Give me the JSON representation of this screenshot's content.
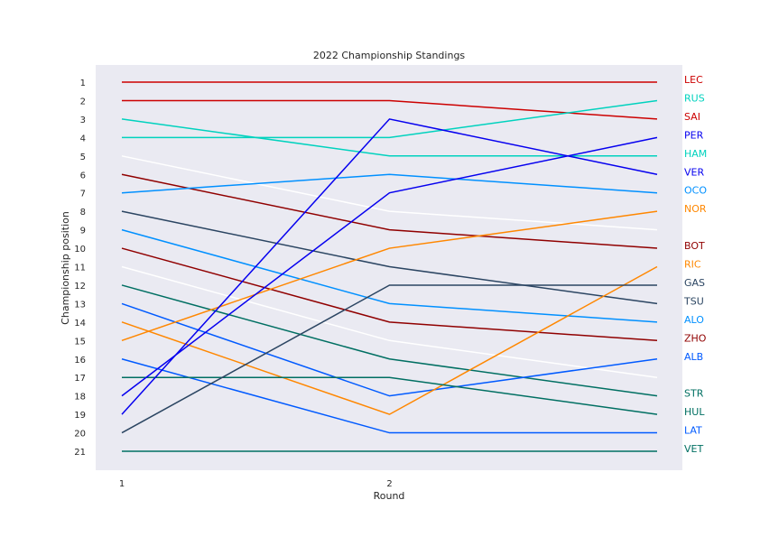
{
  "chart_data": {
    "type": "line",
    "title": "2022 Championship Standings",
    "xlabel": "Round",
    "ylabel": "Championship position",
    "x_ticks": [
      1,
      2
    ],
    "y_ticks": [
      1,
      2,
      3,
      4,
      5,
      6,
      7,
      8,
      9,
      10,
      11,
      12,
      13,
      14,
      15,
      16,
      17,
      18,
      19,
      20,
      21
    ],
    "y_inverted": true,
    "ylim": [
      1,
      21
    ],
    "grid": false,
    "background": "#eaeaf2",
    "series": [
      {
        "color": "#cc0000",
        "x": [
          1,
          2,
          3
        ],
        "y": [
          1,
          1,
          1
        ]
      },
      {
        "color": "#cc0000",
        "x": [
          1,
          2,
          3
        ],
        "y": [
          2,
          2,
          3
        ]
      },
      {
        "color": "#00d2be",
        "x": [
          1,
          2,
          3
        ],
        "y": [
          3,
          5,
          5
        ]
      },
      {
        "color": "#00d2be",
        "x": [
          1,
          2,
          3
        ],
        "y": [
          4,
          4,
          2
        ]
      },
      {
        "color": "#ffffff",
        "x": [
          1,
          2,
          3
        ],
        "y": [
          5,
          8,
          9
        ]
      },
      {
        "color": "#900000",
        "x": [
          1,
          2,
          3
        ],
        "y": [
          6,
          9,
          10
        ]
      },
      {
        "color": "#0090ff",
        "x": [
          1,
          2,
          3
        ],
        "y": [
          7,
          6,
          7
        ]
      },
      {
        "color": "#2b4562",
        "x": [
          1,
          2,
          3
        ],
        "y": [
          8,
          11,
          13
        ]
      },
      {
        "color": "#0090ff",
        "x": [
          1,
          2,
          3
        ],
        "y": [
          9,
          13,
          14
        ]
      },
      {
        "color": "#900000",
        "x": [
          1,
          2,
          3
        ],
        "y": [
          10,
          14,
          15
        ]
      },
      {
        "color": "#ffffff",
        "x": [
          1,
          2,
          3
        ],
        "y": [
          11,
          15,
          17
        ]
      },
      {
        "color": "#006f62",
        "x": [
          1,
          2,
          3
        ],
        "y": [
          12,
          16,
          18
        ]
      },
      {
        "color": "#005aff",
        "x": [
          1,
          2,
          3
        ],
        "y": [
          13,
          18,
          16
        ]
      },
      {
        "color": "#ff8700",
        "x": [
          1,
          2,
          3
        ],
        "y": [
          14,
          19,
          11
        ]
      },
      {
        "color": "#ff8700",
        "x": [
          1,
          2,
          3
        ],
        "y": [
          15,
          10,
          8
        ]
      },
      {
        "color": "#005aff",
        "x": [
          1,
          2,
          3
        ],
        "y": [
          16,
          20,
          20
        ]
      },
      {
        "color": "#006f62",
        "x": [
          1,
          2,
          3
        ],
        "y": [
          17,
          17,
          19
        ]
      },
      {
        "color": "#0600ef",
        "x": [
          1,
          2,
          3
        ],
        "y": [
          18,
          7,
          4
        ]
      },
      {
        "color": "#0600ef",
        "x": [
          1,
          2,
          3
        ],
        "y": [
          19,
          3,
          6
        ]
      },
      {
        "color": "#2b4562",
        "x": [
          1,
          2,
          3
        ],
        "y": [
          20,
          12,
          12
        ]
      },
      {
        "color": "#006f62",
        "x": [
          1,
          2,
          3
        ],
        "y": [
          21,
          21,
          21
        ]
      }
    ],
    "end_labels": [
      {
        "text": "LEC",
        "position": 1,
        "color": "#cc0000"
      },
      {
        "text": "RUS",
        "position": 2,
        "color": "#00d2be"
      },
      {
        "text": "SAI",
        "position": 3,
        "color": "#cc0000"
      },
      {
        "text": "PER",
        "position": 4,
        "color": "#0600ef"
      },
      {
        "text": "HAM",
        "position": 5,
        "color": "#00d2be"
      },
      {
        "text": "VER",
        "position": 6,
        "color": "#0600ef"
      },
      {
        "text": "OCO",
        "position": 7,
        "color": "#0090ff"
      },
      {
        "text": "NOR",
        "position": 8,
        "color": "#ff8700"
      },
      {
        "text": "BOT",
        "position": 10,
        "color": "#900000"
      },
      {
        "text": "RIC",
        "position": 11,
        "color": "#ff8700"
      },
      {
        "text": "GAS",
        "position": 12,
        "color": "#2b4562"
      },
      {
        "text": "TSU",
        "position": 13,
        "color": "#2b4562"
      },
      {
        "text": "ALO",
        "position": 14,
        "color": "#0090ff"
      },
      {
        "text": "ZHO",
        "position": 15,
        "color": "#900000"
      },
      {
        "text": "ALB",
        "position": 16,
        "color": "#005aff"
      },
      {
        "text": "STR",
        "position": 18,
        "color": "#006f62"
      },
      {
        "text": "HUL",
        "position": 19,
        "color": "#006f62"
      },
      {
        "text": "LAT",
        "position": 20,
        "color": "#005aff"
      },
      {
        "text": "VET",
        "position": 21,
        "color": "#006f62"
      }
    ]
  }
}
